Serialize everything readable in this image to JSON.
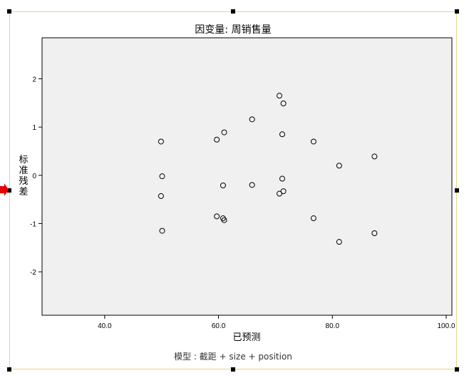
{
  "chart_data": {
    "type": "scatter",
    "title": "因变量: 周销售量",
    "xlabel": "已预测",
    "ylabel": "标准残差",
    "footnote": "模型 : 截距 + size + position",
    "xlim": [
      29,
      101
    ],
    "ylim": [
      -2.9,
      2.85
    ],
    "xticks": [
      40,
      60,
      80,
      100
    ],
    "xtick_labels": [
      "40.0",
      "60.0",
      "80.0",
      "100.0"
    ],
    "yticks": [
      2,
      1,
      0,
      -1,
      -2
    ],
    "ytick_labels": [
      "2",
      "1",
      "0",
      "-1",
      "-2"
    ],
    "grid": false,
    "points": [
      {
        "x": 49.9,
        "y": 0.7
      },
      {
        "x": 50.1,
        "y": -0.02
      },
      {
        "x": 49.9,
        "y": -0.43
      },
      {
        "x": 50.1,
        "y": -1.15
      },
      {
        "x": 59.7,
        "y": 0.74
      },
      {
        "x": 61.0,
        "y": 0.89
      },
      {
        "x": 60.8,
        "y": -0.21
      },
      {
        "x": 59.7,
        "y": -0.85
      },
      {
        "x": 60.8,
        "y": -0.89
      },
      {
        "x": 61.0,
        "y": -0.93
      },
      {
        "x": 65.9,
        "y": 1.16
      },
      {
        "x": 65.9,
        "y": -0.2
      },
      {
        "x": 70.7,
        "y": 1.65
      },
      {
        "x": 71.4,
        "y": 1.49
      },
      {
        "x": 71.2,
        "y": 0.85
      },
      {
        "x": 71.2,
        "y": -0.07
      },
      {
        "x": 71.4,
        "y": -0.33
      },
      {
        "x": 70.7,
        "y": -0.38
      },
      {
        "x": 76.7,
        "y": 0.7
      },
      {
        "x": 76.7,
        "y": -0.89
      },
      {
        "x": 81.2,
        "y": 0.2
      },
      {
        "x": 81.2,
        "y": -1.38
      },
      {
        "x": 87.4,
        "y": 0.39
      },
      {
        "x": 87.4,
        "y": -1.2
      }
    ],
    "colors": {
      "plot_background": "#f0f0f0",
      "marker_stroke": "#000000",
      "frame": "#000000",
      "selection_border": "#e8d48a",
      "arrow": "#e00000"
    }
  }
}
